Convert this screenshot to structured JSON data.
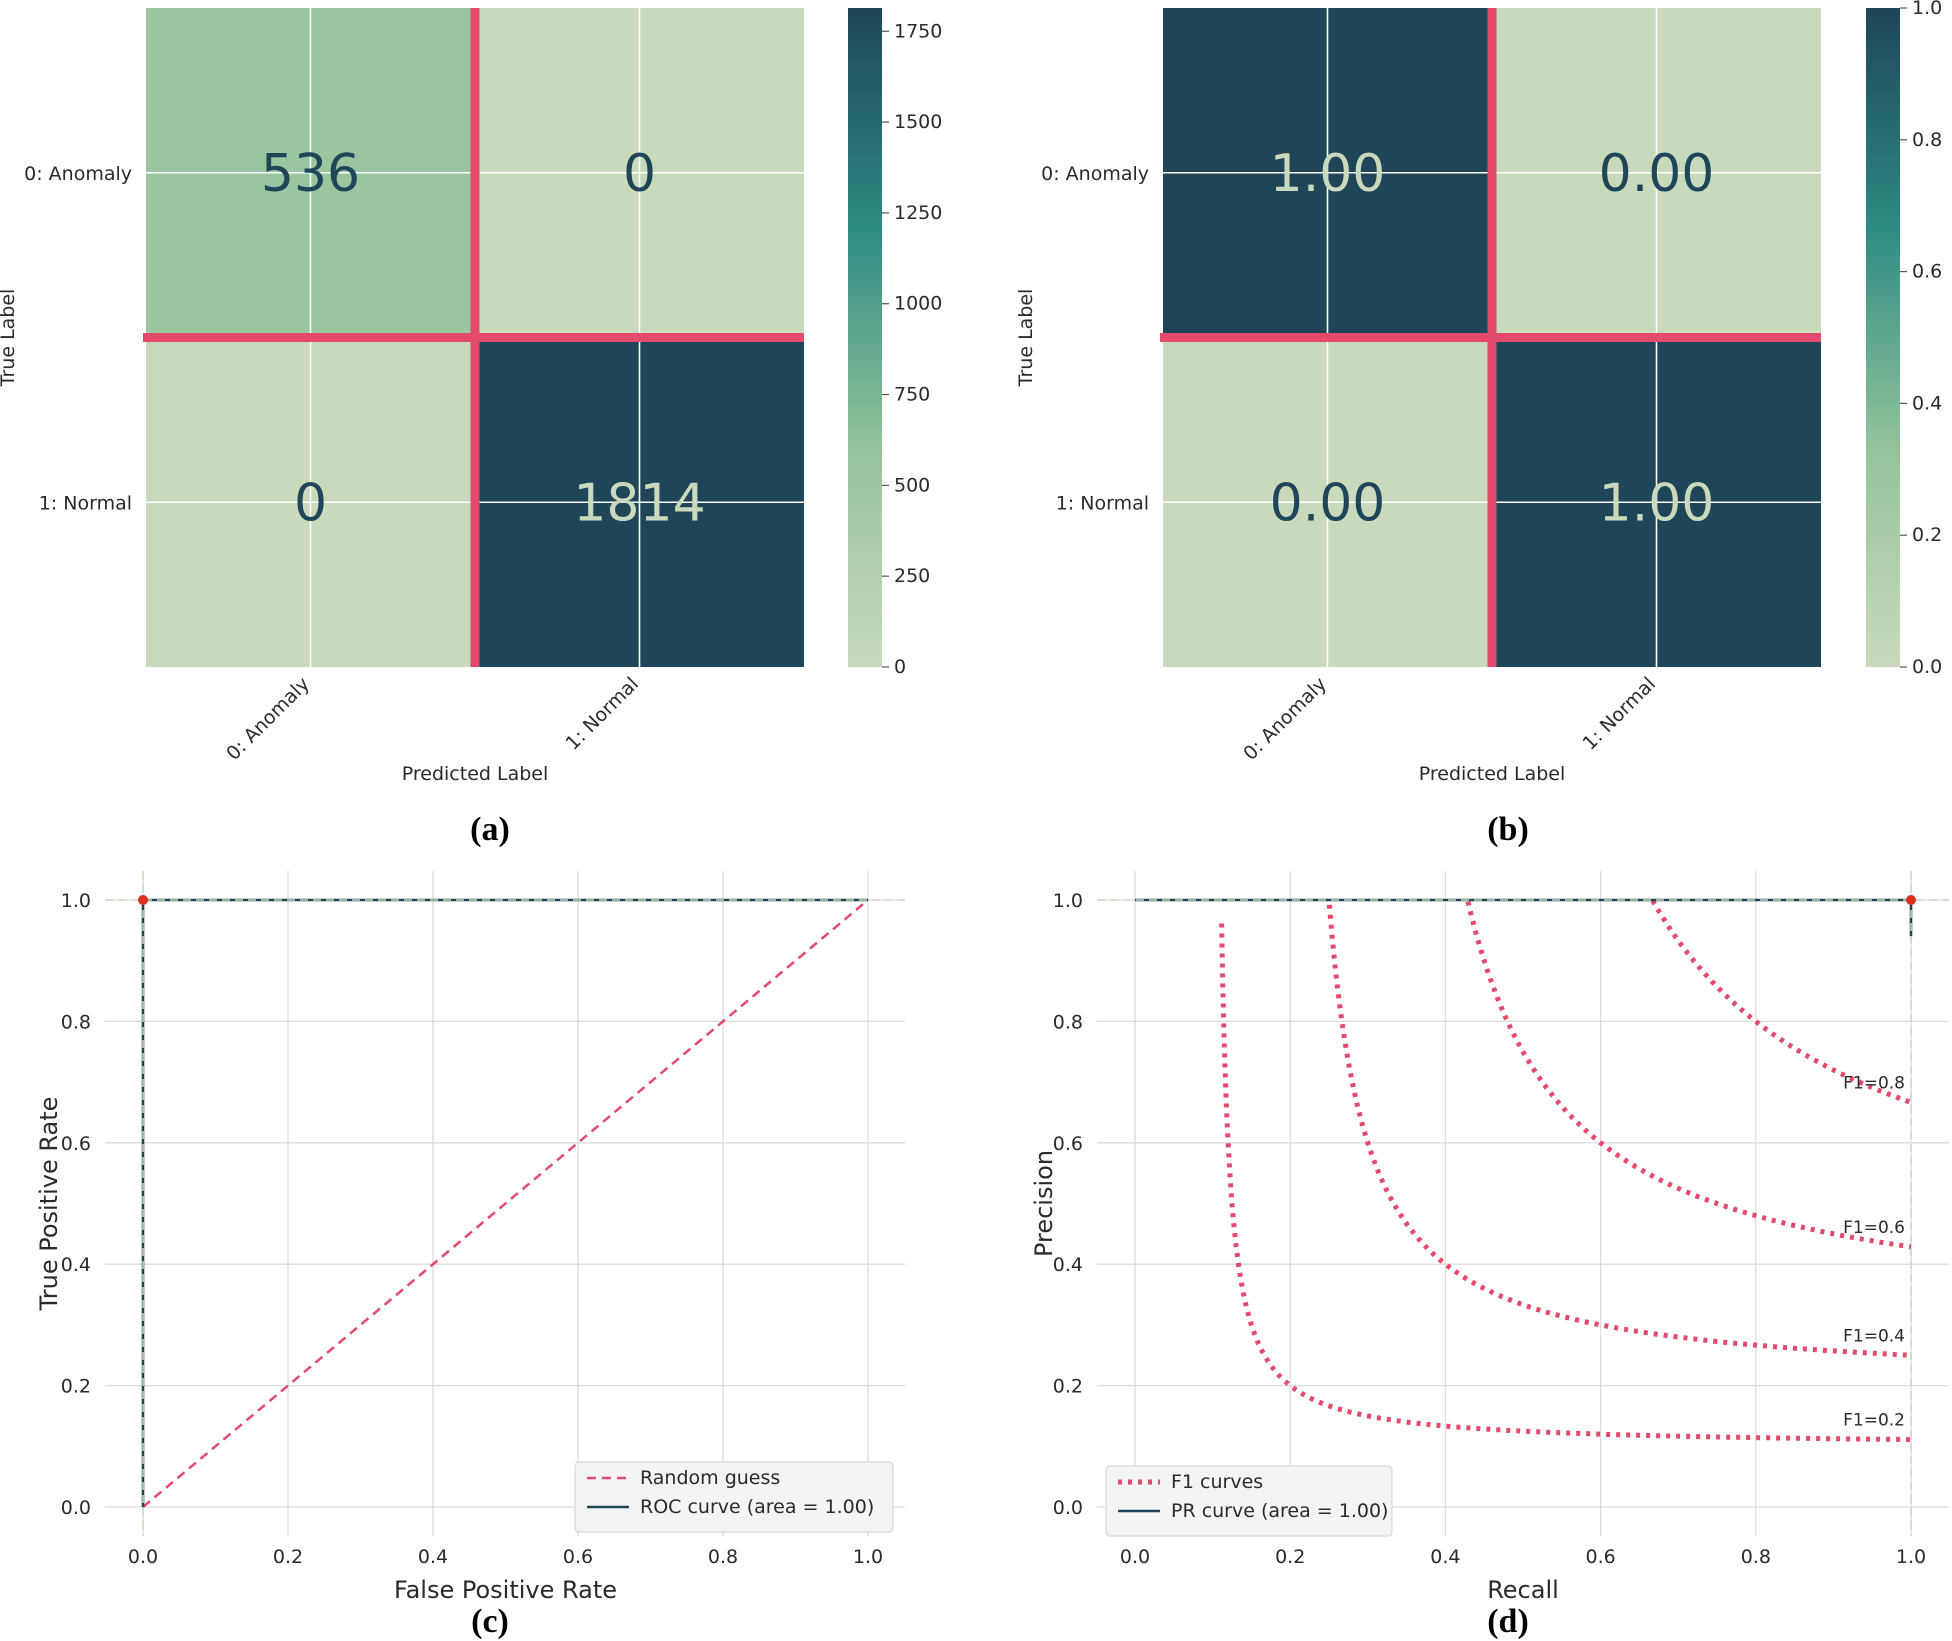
{
  "colors": {
    "cmap": [
      "#c9d9bc",
      "#93c39b",
      "#2c8b82",
      "#1f4558"
    ],
    "accent": "#e34a6e",
    "dark": "#1f4558",
    "light_text": "#c9d9bc",
    "grid": "#dcdcdc",
    "point": "#d9301f"
  },
  "panels": [
    "(a)",
    "(b)",
    "(c)",
    "(d)"
  ],
  "chart_data": [
    {
      "type": "heatmap",
      "panel": "(a)",
      "rows": [
        "0: Anomaly",
        "1: Normal"
      ],
      "cols": [
        "0: Anomaly",
        "1: Normal"
      ],
      "values": [
        [
          536,
          0
        ],
        [
          0,
          1814
        ]
      ],
      "labels": [
        [
          "536",
          "0"
        ],
        [
          "0",
          "1814"
        ]
      ],
      "xlabel": "Predicted Label",
      "ylabel": "True Label",
      "colorbar": {
        "min": 0,
        "max": 1814,
        "ticks": [
          "0",
          "250",
          "500",
          "750",
          "1000",
          "1250",
          "1500",
          "1750"
        ]
      }
    },
    {
      "type": "heatmap",
      "panel": "(b)",
      "rows": [
        "0: Anomaly",
        "1: Normal"
      ],
      "cols": [
        "0: Anomaly",
        "1: Normal"
      ],
      "values": [
        [
          1.0,
          0.0
        ],
        [
          0.0,
          1.0
        ]
      ],
      "labels": [
        [
          "1.00",
          "0.00"
        ],
        [
          "0.00",
          "1.00"
        ]
      ],
      "xlabel": "Predicted Label",
      "ylabel": "True Label",
      "colorbar": {
        "min": 0,
        "max": 1,
        "ticks": [
          "0.0",
          "0.2",
          "0.4",
          "0.6",
          "0.8",
          "1.0"
        ]
      }
    },
    {
      "type": "line",
      "panel": "(c)",
      "xlabel": "False Positive Rate",
      "ylabel": "True Positive Rate",
      "xlim": [
        0,
        1
      ],
      "ylim": [
        0,
        1
      ],
      "xticks": [
        "0.0",
        "0.2",
        "0.4",
        "0.6",
        "0.8",
        "1.0"
      ],
      "yticks": [
        "0.0",
        "0.2",
        "0.4",
        "0.6",
        "0.8",
        "1.0"
      ],
      "grid": true,
      "legend_position": "bottom-right",
      "series": [
        {
          "name": "Random guess",
          "style": "dashed",
          "x": [
            0,
            1
          ],
          "y": [
            0,
            1
          ]
        },
        {
          "name": "ROC curve (area = 1.00)",
          "style": "solid",
          "x": [
            0,
            0,
            1
          ],
          "y": [
            0,
            1,
            1
          ]
        }
      ],
      "marker": {
        "x": 0,
        "y": 1
      }
    },
    {
      "type": "line",
      "panel": "(d)",
      "xlabel": "Recall",
      "ylabel": "Precision",
      "xlim": [
        0,
        1
      ],
      "ylim": [
        0,
        1
      ],
      "xticks": [
        "0.0",
        "0.2",
        "0.4",
        "0.6",
        "0.8",
        "1.0"
      ],
      "yticks": [
        "0.0",
        "0.2",
        "0.4",
        "0.6",
        "0.8",
        "1.0"
      ],
      "grid": true,
      "legend_position": "bottom-left",
      "series": [
        {
          "name": "F1 curves",
          "style": "dotted",
          "f1_levels": [
            0.2,
            0.4,
            0.6,
            0.8
          ],
          "labels": [
            "F1=0.2",
            "F1=0.4",
            "F1=0.6",
            "F1=0.8"
          ]
        },
        {
          "name": "PR curve (area = 1.00)",
          "style": "solid",
          "x": [
            0,
            1,
            1
          ],
          "y": [
            1,
            1,
            0.94
          ]
        }
      ],
      "marker": {
        "x": 1,
        "y": 1
      }
    }
  ]
}
